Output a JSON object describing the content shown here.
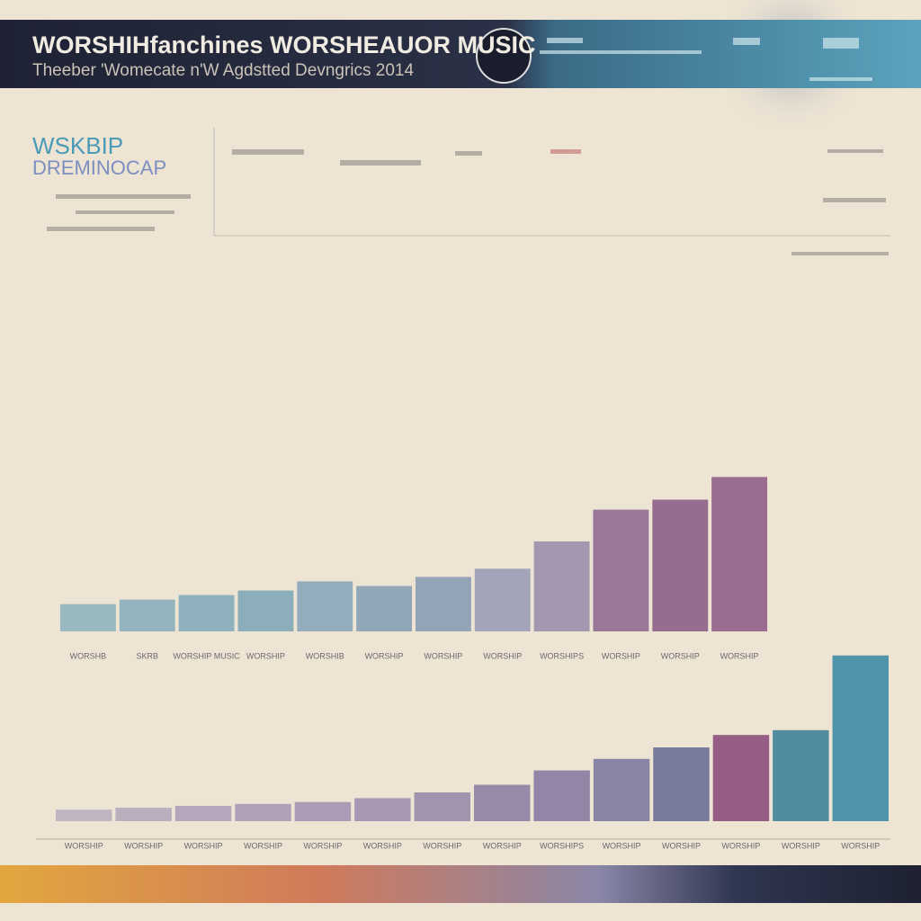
{
  "header": {
    "title": "WORSHIHfanchines WORSHEAUOR MUSIC",
    "subtitle": "Theeber 'Womecate n'W Agdstted Devngrics 2014"
  },
  "panel": {
    "title": "WSKBIP",
    "subtitle": "DREMINOCAP"
  },
  "chart_data": [
    {
      "type": "bar",
      "categories": [
        "WORSHB",
        "SKRB",
        "WORSHIP MUSIC",
        "WORSHIP",
        "WORSHIB",
        "WORSHIP",
        "WORSHIP",
        "WORSHIP",
        "WORSHIPS",
        "WORSHIP",
        "WORSHIP",
        "WORSHIP"
      ],
      "values": [
        30,
        35,
        40,
        45,
        55,
        50,
        60,
        69,
        99,
        134,
        145,
        170
      ],
      "colors": [
        "#8fb3bd",
        "#88aebb",
        "#84abba",
        "#7fa7b7",
        "#8aa6b9",
        "#86a0b4",
        "#8a9cb4",
        "#9a9cb6",
        "#9a8fab",
        "#8f6a90",
        "#8c5f86",
        "#91618a"
      ],
      "ylim": [
        0,
        200
      ]
    },
    {
      "type": "bar",
      "categories": [
        "WORSHIP",
        "WORSHIP",
        "WORSHIP",
        "WORSHIP",
        "WORSHIP",
        "WORSHIP",
        "WORSHIP",
        "WORSHIP",
        "WORSHIPS",
        "WORSHIP",
        "WORSHIP",
        "WORSHIP",
        "WORSHIP",
        "WORSHIP"
      ],
      "values": [
        12,
        14,
        16,
        18,
        20,
        24,
        30,
        38,
        53,
        65,
        77,
        90,
        95,
        173
      ],
      "colors": [
        "#b9aebf",
        "#b3a8bc",
        "#ae9fb8",
        "#a898b5",
        "#a494b1",
        "#9e8eae",
        "#988bab",
        "#8d7fa3",
        "#887aa0",
        "#7c7aa0",
        "#6a6f98",
        "#8c4f7c",
        "#3f8399",
        "#3c8ca6"
      ],
      "ylim": [
        0,
        200
      ]
    }
  ]
}
